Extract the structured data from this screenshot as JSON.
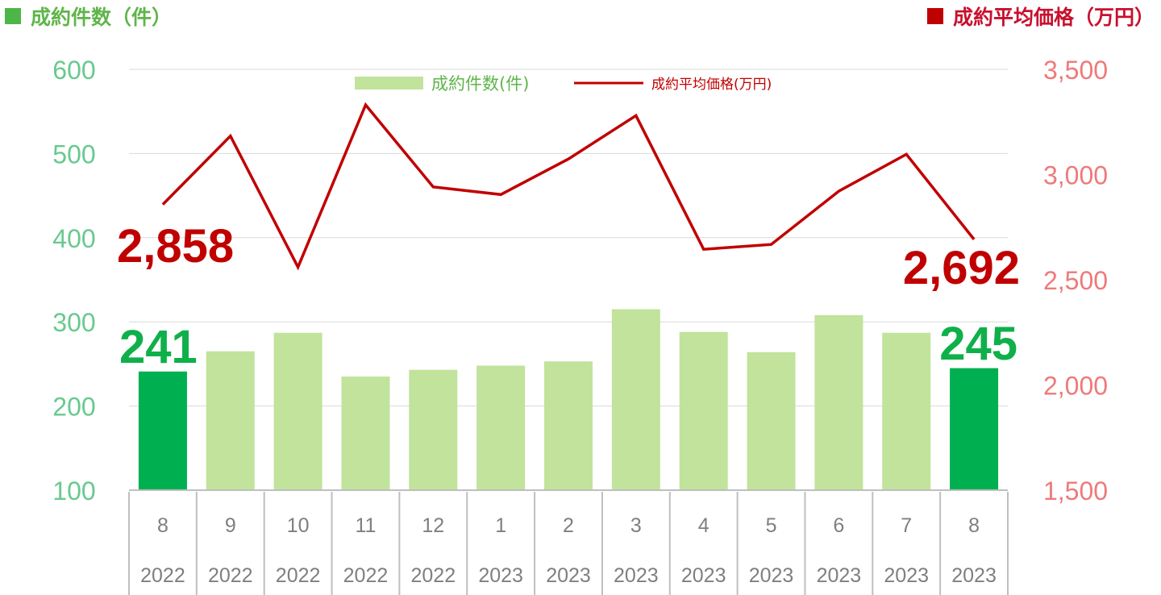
{
  "header": {
    "left_title": "成約件数（件）",
    "right_title": "成約平均価格（万円）"
  },
  "colors": {
    "bar": "#c1e39b",
    "bar_highlight": "#00b050",
    "line": "#c00000",
    "left_axis": "#69c98f",
    "right_axis": "#ee7a7a",
    "highlight_count": "#0fb04a",
    "highlight_price": "#c00000",
    "grid": "#d9d9d9",
    "table_border": "#bfbfbf",
    "table_text": "#7f7f7f"
  },
  "chart_data": {
    "type": "bar+line",
    "categories": [
      "8",
      "9",
      "10",
      "11",
      "12",
      "1",
      "2",
      "3",
      "4",
      "5",
      "6",
      "7",
      "8"
    ],
    "years": [
      "2022",
      "2022",
      "2022",
      "2022",
      "2022",
      "2023",
      "2023",
      "2023",
      "2023",
      "2023",
      "2023",
      "2023",
      "2023"
    ],
    "series": [
      {
        "name": "成約件数(件)",
        "kind": "bar",
        "axis": "left",
        "values": [
          241,
          265,
          287,
          235,
          243,
          248,
          253,
          315,
          288,
          264,
          308,
          287,
          245
        ],
        "highlight": [
          0,
          12
        ]
      },
      {
        "name": "成約平均価格(万円)",
        "kind": "line",
        "axis": "right",
        "values": [
          2858,
          3183,
          2560,
          3331,
          2941,
          2905,
          3074,
          3280,
          2645,
          2668,
          2921,
          3096,
          2692
        ]
      }
    ],
    "left_axis": {
      "min": 100,
      "max": 600,
      "step": 100,
      "ticks": [
        "100",
        "200",
        "300",
        "400",
        "500",
        "600"
      ]
    },
    "right_axis": {
      "min": 1500,
      "max": 3500,
      "step": 500,
      "ticks": [
        "1,500",
        "2,000",
        "2,500",
        "3,000",
        "3,500"
      ]
    },
    "legend": {
      "placement": "top-center",
      "bar_label": "成約件数(件)",
      "line_label": "成約平均価格(万円)"
    },
    "callouts": {
      "count_first": "241",
      "count_last": "245",
      "price_first": "2,858",
      "price_last": "2,692"
    },
    "grid": true
  }
}
